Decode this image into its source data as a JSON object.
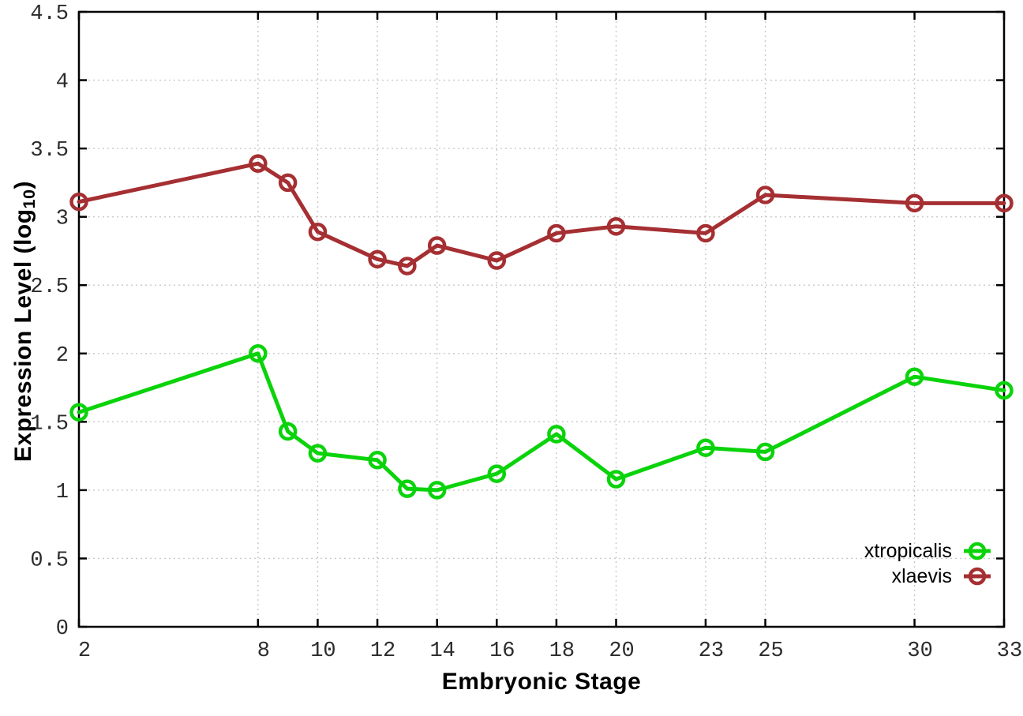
{
  "chart_data": {
    "type": "line",
    "title": "",
    "xlabel": "Embryonic Stage",
    "ylabel": "Expression Level (log10)",
    "ylabel_base": "Expression Level (log",
    "ylabel_subscript": "10",
    "ylabel_suffix": ")",
    "xlim": [
      2,
      33
    ],
    "ylim": [
      0,
      4.5
    ],
    "grid": true,
    "legend_position": "inside-bottom-right",
    "x_ticks": [
      2,
      8,
      10,
      12,
      14,
      16,
      18,
      20,
      23,
      25,
      30,
      33
    ],
    "x_tick_labels": [
      "2",
      "8",
      "10",
      "12",
      "14",
      "16",
      "18",
      "20",
      "23",
      "25",
      "30",
      "33"
    ],
    "y_ticks": [
      0,
      0.5,
      1,
      1.5,
      2,
      2.5,
      3,
      3.5,
      4,
      4.5
    ],
    "y_tick_labels": [
      "0",
      "0.5",
      "1",
      "1.5",
      "2",
      "2.5",
      "3",
      "3.5",
      "4",
      "4.5"
    ],
    "x": [
      2,
      8,
      9,
      10,
      12,
      13,
      14,
      16,
      18,
      20,
      23,
      25,
      30,
      33
    ],
    "series": [
      {
        "name": "xtropicalis",
        "color": "#0bd30b",
        "values": [
          1.57,
          2.0,
          1.43,
          1.27,
          1.22,
          1.01,
          1.0,
          1.12,
          1.41,
          1.08,
          1.31,
          1.28,
          1.83,
          1.73
        ]
      },
      {
        "name": "xlaevis",
        "color": "#a52f32",
        "values": [
          3.11,
          3.39,
          3.25,
          2.89,
          2.69,
          2.64,
          2.79,
          2.68,
          2.88,
          2.93,
          2.88,
          3.16,
          3.1,
          3.1
        ]
      }
    ],
    "colors": {
      "grid": "#c8c8c8",
      "axis": "#000000",
      "tick_label": "#2b2b2b"
    }
  }
}
